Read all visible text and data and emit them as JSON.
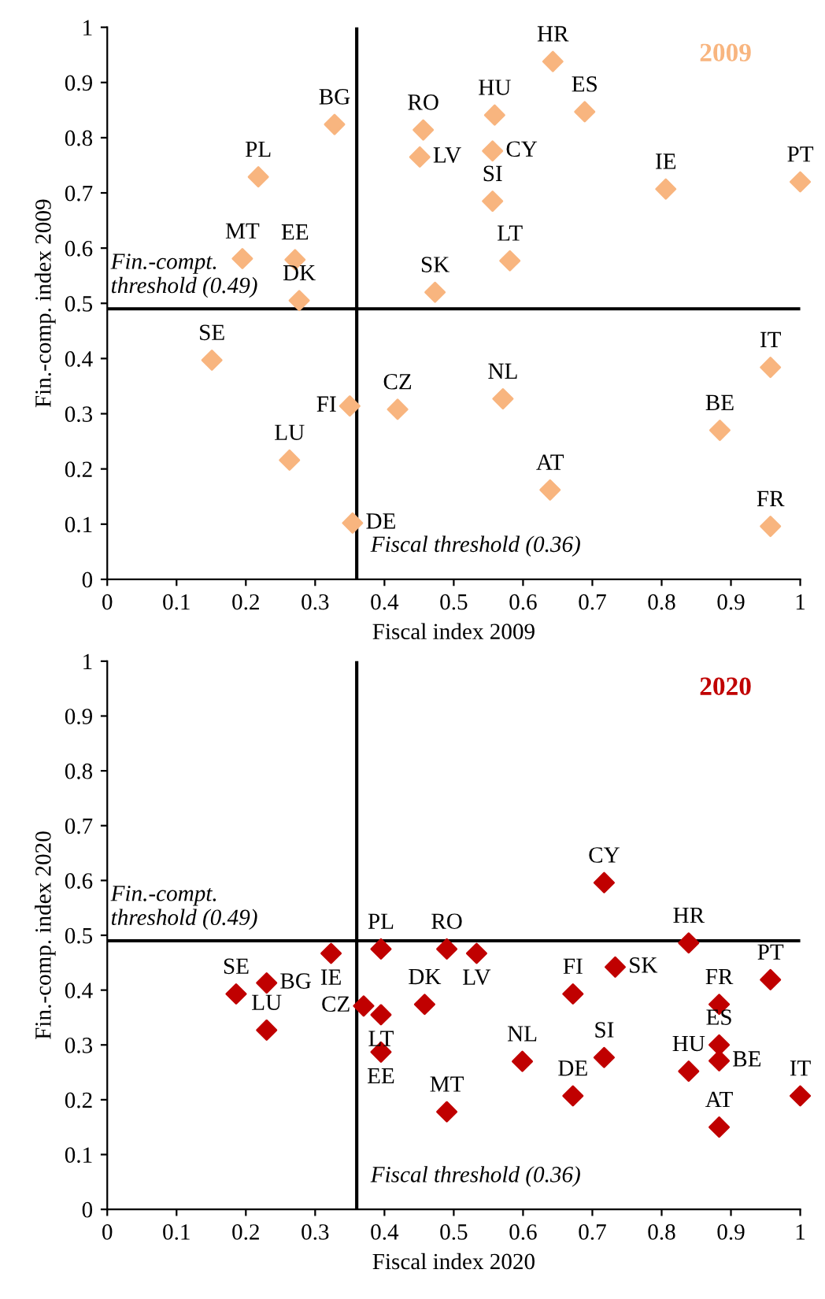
{
  "chart_data": [
    {
      "type": "scatter",
      "title": "2009",
      "xlabel": "Fiscal index 2009",
      "ylabel": "Fin.-comp. index 2009",
      "marker": "diamond",
      "grid": false,
      "xlim": [
        0,
        1
      ],
      "ylim": [
        0,
        1
      ],
      "xticks": [
        0,
        0.1,
        0.2,
        0.3,
        0.4,
        0.5,
        0.6,
        0.7,
        0.8,
        0.9,
        1
      ],
      "yticks": [
        0,
        0.1,
        0.2,
        0.3,
        0.4,
        0.5,
        0.6,
        0.7,
        0.8,
        0.9,
        1
      ],
      "series": [
        {
          "color": "#f8b57f",
          "x": [
            0.643,
            0.689,
            0.328,
            0.456,
            0.451,
            0.559,
            0.556,
            0.556,
            0.218,
            0.806,
            1.0,
            0.581,
            0.195,
            0.271,
            0.277,
            0.473,
            0.151,
            0.957,
            0.35,
            0.419,
            0.571,
            0.884,
            0.263,
            0.639,
            0.354,
            0.957
          ],
          "values": [
            0.938,
            0.847,
            0.824,
            0.814,
            0.765,
            0.841,
            0.776,
            0.685,
            0.729,
            0.707,
            0.72,
            0.577,
            0.581,
            0.579,
            0.505,
            0.52,
            0.397,
            0.384,
            0.314,
            0.308,
            0.327,
            0.27,
            0.216,
            0.162,
            0.102,
            0.096
          ]
        }
      ],
      "annotations": [
        {
          "text": "HR",
          "x": 0.643,
          "y": 0.938
        },
        {
          "text": "ES",
          "x": 0.689,
          "y": 0.847
        },
        {
          "text": "BG",
          "x": 0.328,
          "y": 0.824
        },
        {
          "text": "RO",
          "x": 0.456,
          "y": 0.814
        },
        {
          "text": "LV",
          "x": 0.451,
          "y": 0.765
        },
        {
          "text": "HU",
          "x": 0.559,
          "y": 0.841
        },
        {
          "text": "CY",
          "x": 0.556,
          "y": 0.776
        },
        {
          "text": "SI",
          "x": 0.556,
          "y": 0.685
        },
        {
          "text": "PL",
          "x": 0.218,
          "y": 0.729
        },
        {
          "text": "IE",
          "x": 0.806,
          "y": 0.707
        },
        {
          "text": "PT",
          "x": 1.0,
          "y": 0.72
        },
        {
          "text": "LT",
          "x": 0.581,
          "y": 0.577
        },
        {
          "text": "MT",
          "x": 0.195,
          "y": 0.581
        },
        {
          "text": "EE",
          "x": 0.271,
          "y": 0.579
        },
        {
          "text": "DK",
          "x": 0.277,
          "y": 0.505
        },
        {
          "text": "SK",
          "x": 0.473,
          "y": 0.52
        },
        {
          "text": "SE",
          "x": 0.151,
          "y": 0.397
        },
        {
          "text": "IT",
          "x": 0.957,
          "y": 0.384
        },
        {
          "text": "FI",
          "x": 0.35,
          "y": 0.314
        },
        {
          "text": "CZ",
          "x": 0.419,
          "y": 0.308
        },
        {
          "text": "NL",
          "x": 0.571,
          "y": 0.327
        },
        {
          "text": "BE",
          "x": 0.884,
          "y": 0.27
        },
        {
          "text": "LU",
          "x": 0.263,
          "y": 0.216
        },
        {
          "text": "AT",
          "x": 0.639,
          "y": 0.162
        },
        {
          "text": "DE",
          "x": 0.354,
          "y": 0.102
        },
        {
          "text": "FR",
          "x": 0.957,
          "y": 0.096
        }
      ],
      "ref_lines": [
        {
          "axis": "y",
          "value": 0.49,
          "label": "Fin.-compt.\nthreshold (0.49)",
          "color": "#000000"
        },
        {
          "axis": "x",
          "value": 0.36,
          "label": "Fiscal threshold (0.36)",
          "color": "#000000"
        }
      ]
    },
    {
      "type": "scatter",
      "title": "2020",
      "xlabel": "Fiscal index 2020",
      "ylabel": "Fin.-comp. index 2020",
      "marker": "diamond",
      "grid": false,
      "xlim": [
        0,
        1
      ],
      "ylim": [
        0,
        1
      ],
      "xticks": [
        0,
        0.1,
        0.2,
        0.3,
        0.4,
        0.5,
        0.6,
        0.7,
        0.8,
        0.9,
        1
      ],
      "yticks": [
        0,
        0.1,
        0.2,
        0.3,
        0.4,
        0.5,
        0.6,
        0.7,
        0.8,
        0.9,
        1
      ],
      "series": [
        {
          "color": "#c00000",
          "x": [
            0.717,
            0.839,
            0.186,
            0.23,
            0.23,
            0.323,
            0.395,
            0.533,
            0.49,
            0.37,
            0.395,
            0.395,
            0.458,
            0.49,
            0.599,
            0.672,
            0.672,
            0.717,
            0.733,
            0.883,
            0.957,
            0.883,
            0.883,
            0.839,
            0.883,
            1.0
          ],
          "values": [
            0.596,
            0.486,
            0.393,
            0.413,
            0.327,
            0.467,
            0.475,
            0.467,
            0.475,
            0.371,
            0.355,
            0.287,
            0.374,
            0.178,
            0.27,
            0.207,
            0.393,
            0.277,
            0.442,
            0.374,
            0.419,
            0.3,
            0.271,
            0.252,
            0.15,
            0.207
          ]
        }
      ],
      "annotations": [
        {
          "text": "CY",
          "x": 0.717,
          "y": 0.596
        },
        {
          "text": "HR",
          "x": 0.839,
          "y": 0.486
        },
        {
          "text": "SE",
          "x": 0.186,
          "y": 0.393
        },
        {
          "text": "BG",
          "x": 0.23,
          "y": 0.413
        },
        {
          "text": "LU",
          "x": 0.23,
          "y": 0.327
        },
        {
          "text": "IE",
          "x": 0.323,
          "y": 0.467
        },
        {
          "text": "PL",
          "x": 0.395,
          "y": 0.475
        },
        {
          "text": "LV",
          "x": 0.533,
          "y": 0.467
        },
        {
          "text": "RO",
          "x": 0.49,
          "y": 0.475
        },
        {
          "text": "CZ",
          "x": 0.37,
          "y": 0.371
        },
        {
          "text": "LT",
          "x": 0.395,
          "y": 0.355
        },
        {
          "text": "EE",
          "x": 0.395,
          "y": 0.287
        },
        {
          "text": "DK",
          "x": 0.458,
          "y": 0.374
        },
        {
          "text": "MT",
          "x": 0.49,
          "y": 0.178
        },
        {
          "text": "NL",
          "x": 0.599,
          "y": 0.27
        },
        {
          "text": "DE",
          "x": 0.672,
          "y": 0.207
        },
        {
          "text": "FI",
          "x": 0.672,
          "y": 0.393
        },
        {
          "text": "SI",
          "x": 0.717,
          "y": 0.277
        },
        {
          "text": "SK",
          "x": 0.733,
          "y": 0.442
        },
        {
          "text": "FR",
          "x": 0.883,
          "y": 0.374
        },
        {
          "text": "PT",
          "x": 0.957,
          "y": 0.419
        },
        {
          "text": "ES",
          "x": 0.883,
          "y": 0.3
        },
        {
          "text": "BE",
          "x": 0.883,
          "y": 0.271
        },
        {
          "text": "HU",
          "x": 0.839,
          "y": 0.252
        },
        {
          "text": "AT",
          "x": 0.883,
          "y": 0.15
        },
        {
          "text": "IT",
          "x": 1.0,
          "y": 0.207
        }
      ],
      "ref_lines": [
        {
          "axis": "y",
          "value": 0.49,
          "label": "Fin.-compt.\nthreshold (0.49)",
          "color": "#000000"
        },
        {
          "axis": "x",
          "value": 0.36,
          "label": "Fiscal threshold (0.36)",
          "color": "#000000"
        }
      ]
    }
  ]
}
